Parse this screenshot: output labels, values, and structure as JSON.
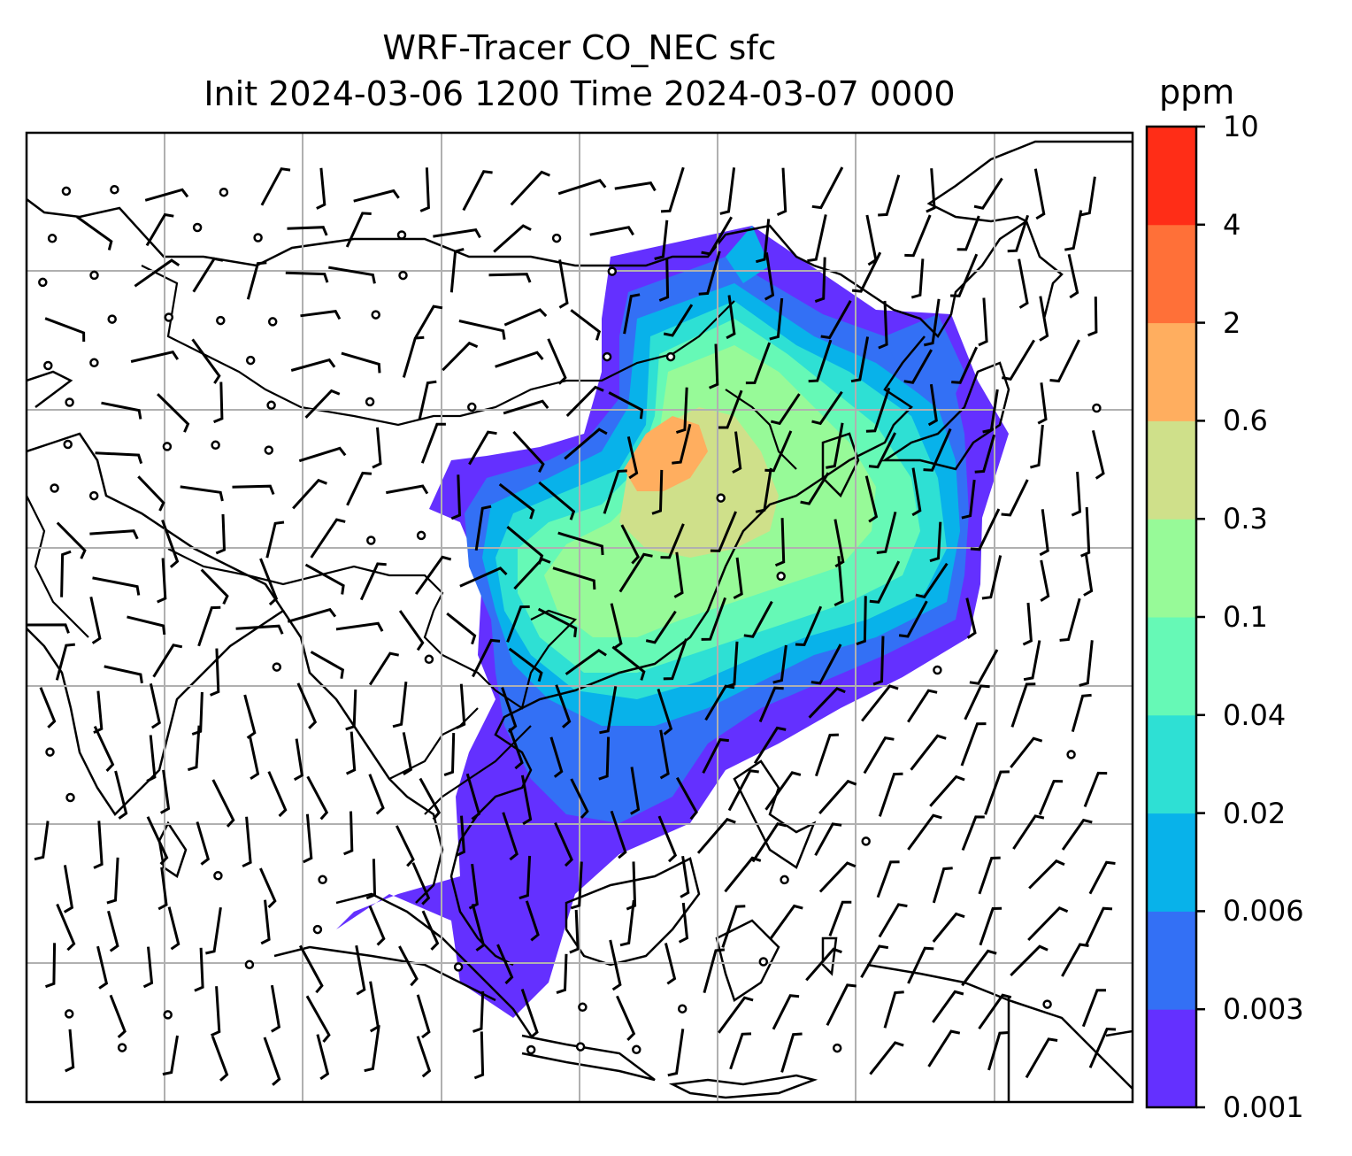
{
  "title": {
    "line1": "WRF-Tracer CO_NEC sfc",
    "line2": "Init 2024-03-06 1200 Time 2024-03-07 0000"
  },
  "colorbar": {
    "unit": "ppm",
    "levels": [
      "0.001",
      "0.003",
      "0.006",
      "0.02",
      "0.04",
      "0.1",
      "0.3",
      "0.6",
      "2",
      "4",
      "10"
    ],
    "colors": [
      "#6430ff",
      "#3370f5",
      "#08b2ea",
      "#2ee0d4",
      "#66f9b6",
      "#97fa98",
      "#cfe08a",
      "#ffae5f",
      "#ff7038",
      "#ff2d17"
    ]
  },
  "map": {
    "gridlines": true,
    "features": [
      "coastlines",
      "country-borders",
      "wind-barbs",
      "calm-wind-circles",
      "tracer-concentration-fill"
    ]
  }
}
